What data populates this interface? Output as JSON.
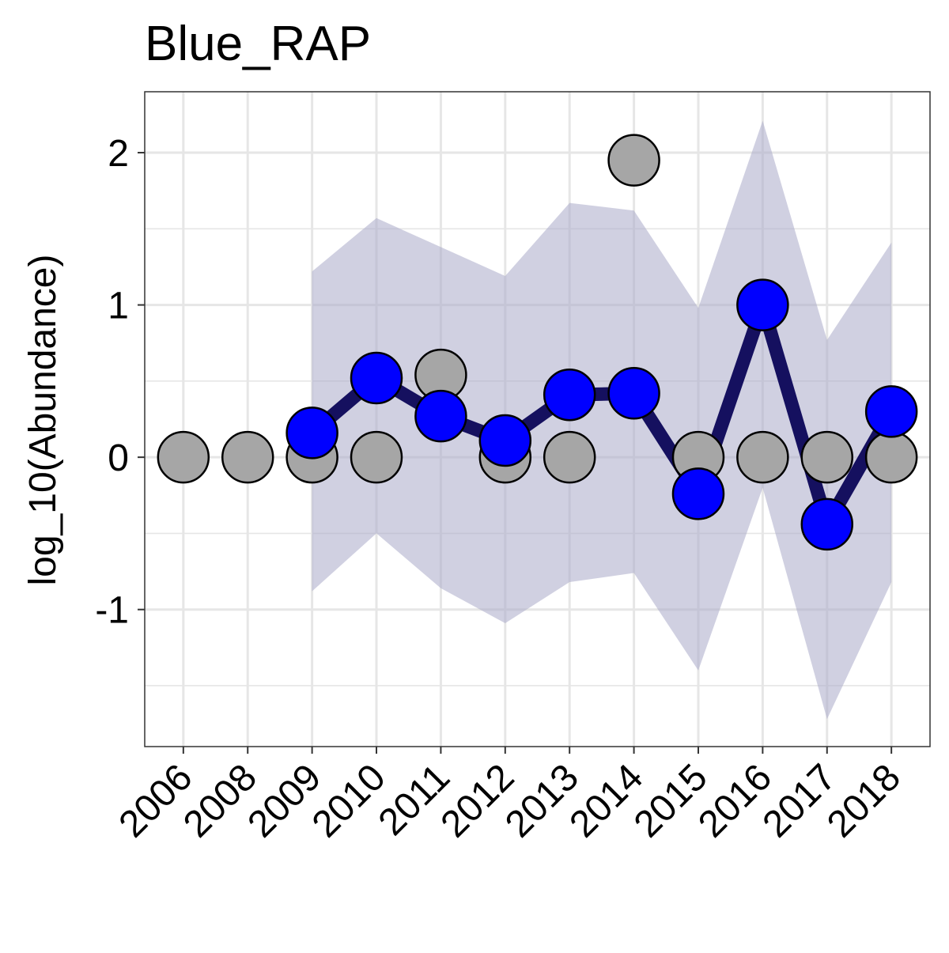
{
  "colors": {
    "panel_border": "#333333",
    "grid": "#e6e6e6",
    "ribbon": "#a9a9c8",
    "line": "#15105f",
    "estimate_point": "#0000ff",
    "observed_point": "#a6a6a6",
    "point_outline": "#000000"
  },
  "chart_data": {
    "type": "line",
    "title": "Blue_RAP",
    "xlabel": "",
    "ylabel": "log_10(Abundance)",
    "categories": [
      "2006",
      "2008",
      "2009",
      "2010",
      "2011",
      "2012",
      "2013",
      "2014",
      "2015",
      "2016",
      "2017",
      "2018"
    ],
    "ylim": [
      -1.9,
      2.4
    ],
    "yticks": [
      -1,
      0,
      1,
      2
    ],
    "ytick_labels": [
      "-1",
      "0",
      "1",
      "2"
    ],
    "grid": true,
    "legend": "none",
    "series": [
      {
        "role": "observed",
        "style": "points",
        "values": [
          0,
          0,
          0,
          0,
          0.54,
          0,
          0,
          1.95,
          0,
          0,
          0,
          0
        ]
      },
      {
        "role": "confidence_band",
        "style": "ribbon",
        "lower": [
          null,
          null,
          -0.88,
          -0.5,
          -0.86,
          -1.09,
          -0.82,
          -0.76,
          -1.4,
          -0.2,
          -1.72,
          -0.82
        ],
        "upper": [
          null,
          null,
          1.22,
          1.57,
          1.38,
          1.19,
          1.67,
          1.62,
          0.98,
          2.21,
          0.77,
          1.41
        ]
      },
      {
        "role": "estimate",
        "style": "line+points",
        "values": [
          null,
          null,
          0.16,
          0.52,
          0.27,
          0.11,
          0.41,
          0.42,
          -0.24,
          1.0,
          -0.44,
          0.3
        ]
      }
    ]
  }
}
